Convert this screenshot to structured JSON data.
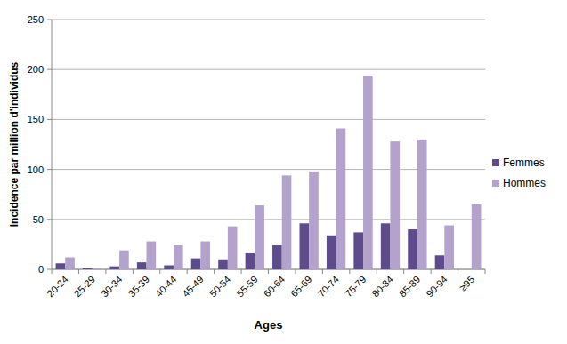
{
  "chart_data": {
    "type": "bar",
    "x_label": "Ages",
    "y_label": "Incidence par million d'individus",
    "categories": [
      "20-24",
      "25-29",
      "30-34",
      "35-39",
      "40-44",
      "45-49",
      "50-54",
      "55-59",
      "60-64",
      "65-69",
      "70-74",
      "75-79",
      "80-84",
      "85-89",
      "90-94",
      "≥95"
    ],
    "series": [
      {
        "name": "Femmes",
        "color": "#5e4b8b",
        "values": [
          6,
          1,
          3,
          7,
          4,
          11,
          10,
          16,
          24,
          46,
          34,
          37,
          46,
          40,
          14,
          0
        ]
      },
      {
        "name": "Hommes",
        "color": "#b3a3cc",
        "values": [
          12,
          1,
          19,
          28,
          24,
          28,
          43,
          64,
          94,
          98,
          141,
          194,
          128,
          130,
          44,
          65
        ]
      }
    ],
    "ylim": [
      0,
      250
    ],
    "yticks": [
      0,
      50,
      100,
      150,
      200,
      250
    ],
    "grid": true,
    "legend": "right"
  }
}
